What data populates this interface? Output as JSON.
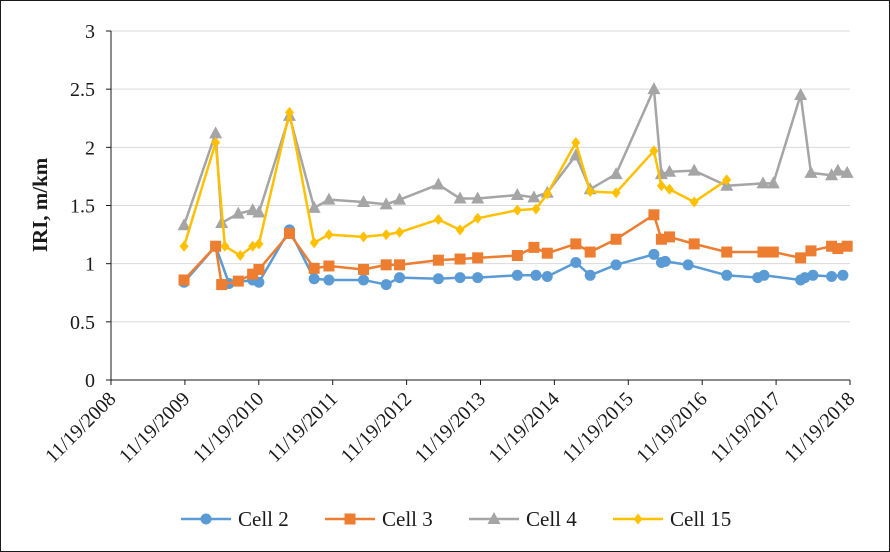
{
  "chart_data": {
    "type": "line",
    "title": "",
    "xlabel": "",
    "ylabel": "IRI, m/km",
    "ylim": [
      0,
      3
    ],
    "yticks": [
      "0",
      "0.5",
      "1",
      "1.5",
      "2",
      "2.5",
      "3"
    ],
    "xlim": [
      "2008-11-19",
      "2018-11-19"
    ],
    "xticks": [
      "11/19/2008",
      "11/19/2009",
      "11/19/2010",
      "11/19/2011",
      "11/19/2012",
      "11/19/2013",
      "11/19/2014",
      "11/19/2015",
      "11/19/2016",
      "11/19/2017",
      "11/19/2018"
    ],
    "grid": "horizontal",
    "legend_position": "bottom",
    "series": [
      {
        "name": "Cell 2",
        "color": "#5b9bd5",
        "marker": "circle",
        "x": [
          "2009-11-15",
          "2010-04-20",
          "2010-06-25",
          "2010-10-20",
          "2010-11-20",
          "2011-04-20",
          "2011-08-20",
          "2011-11-01",
          "2012-04-20",
          "2012-08-10",
          "2012-10-15",
          "2013-04-25",
          "2013-08-10",
          "2013-11-05",
          "2014-05-20",
          "2014-08-20",
          "2014-10-15",
          "2015-03-05",
          "2015-05-15",
          "2015-09-20",
          "2016-03-25",
          "2016-05-01",
          "2016-05-20",
          "2016-09-10",
          "2017-03-20",
          "2017-08-20",
          "2017-09-20",
          "2018-03-20",
          "2018-04-10",
          "2018-05-20",
          "2018-08-20",
          "2018-10-15"
        ],
        "values": [
          0.84,
          1.15,
          0.83,
          0.86,
          0.84,
          1.29,
          0.87,
          0.86,
          0.86,
          0.82,
          0.88,
          0.87,
          0.88,
          0.88,
          0.9,
          0.9,
          0.89,
          1.01,
          0.9,
          0.99,
          1.08,
          1.01,
          1.02,
          0.99,
          0.9,
          0.88,
          0.9,
          0.86,
          0.88,
          0.9,
          0.89,
          0.9
        ]
      },
      {
        "name": "Cell 3",
        "color": "#ed7d31",
        "marker": "square",
        "x": [
          "2009-11-15",
          "2010-04-20",
          "2010-05-20",
          "2010-08-10",
          "2010-10-20",
          "2010-11-20",
          "2011-04-20",
          "2011-08-20",
          "2011-11-01",
          "2012-04-20",
          "2012-08-10",
          "2012-10-15",
          "2013-04-25",
          "2013-08-10",
          "2013-11-05",
          "2014-05-20",
          "2014-08-10",
          "2014-10-15",
          "2015-03-05",
          "2015-05-15",
          "2015-09-20",
          "2016-03-25",
          "2016-05-01",
          "2016-06-10",
          "2016-10-10",
          "2017-03-20",
          "2017-09-15",
          "2017-11-05",
          "2018-03-20",
          "2018-05-10",
          "2018-08-20",
          "2018-09-20",
          "2018-11-05"
        ],
        "values": [
          0.86,
          1.15,
          0.82,
          0.85,
          0.91,
          0.95,
          1.26,
          0.96,
          0.98,
          0.95,
          0.99,
          0.99,
          1.03,
          1.04,
          1.05,
          1.07,
          1.14,
          1.09,
          1.17,
          1.1,
          1.21,
          1.42,
          1.21,
          1.23,
          1.17,
          1.1,
          1.1,
          1.1,
          1.05,
          1.11,
          1.15,
          1.13,
          1.15
        ]
      },
      {
        "name": "Cell 4",
        "color": "#a5a5a5",
        "marker": "triangle",
        "x": [
          "2009-11-15",
          "2010-04-20",
          "2010-05-20",
          "2010-08-10",
          "2010-10-20",
          "2010-11-20",
          "2011-04-20",
          "2011-08-20",
          "2011-11-01",
          "2012-04-20",
          "2012-08-10",
          "2012-10-15",
          "2013-04-25",
          "2013-08-10",
          "2013-11-05",
          "2014-05-20",
          "2014-08-10",
          "2014-10-15",
          "2015-03-05",
          "2015-05-15",
          "2015-09-20",
          "2016-03-25",
          "2016-05-01",
          "2016-06-10",
          "2016-10-10",
          "2017-03-20",
          "2017-09-15",
          "2017-11-05",
          "2018-03-20",
          "2018-05-10",
          "2018-08-20",
          "2018-09-20",
          "2018-11-05"
        ],
        "values": [
          1.33,
          2.12,
          1.35,
          1.43,
          1.46,
          1.44,
          2.27,
          1.48,
          1.55,
          1.53,
          1.51,
          1.55,
          1.68,
          1.56,
          1.56,
          1.59,
          1.57,
          1.61,
          1.93,
          1.64,
          1.77,
          2.5,
          1.77,
          1.79,
          1.8,
          1.67,
          1.69,
          1.69,
          2.45,
          1.78,
          1.76,
          1.8,
          1.78
        ]
      },
      {
        "name": "Cell 15",
        "color": "#ffc000",
        "marker": "diamond",
        "x": [
          "2009-11-15",
          "2010-04-20",
          "2010-06-05",
          "2010-08-20",
          "2010-10-20",
          "2010-11-20",
          "2011-04-20",
          "2011-08-20",
          "2011-11-01",
          "2012-04-20",
          "2012-08-10",
          "2012-10-15",
          "2013-04-25",
          "2013-08-10",
          "2013-11-05",
          "2014-05-20",
          "2014-08-20",
          "2014-10-15",
          "2015-03-05",
          "2015-05-15",
          "2015-09-20",
          "2016-03-25",
          "2016-05-01",
          "2016-06-10",
          "2016-10-10",
          "2017-03-20"
        ],
        "values": [
          1.15,
          2.04,
          1.15,
          1.07,
          1.15,
          1.17,
          2.3,
          1.18,
          1.25,
          1.23,
          1.25,
          1.27,
          1.38,
          1.29,
          1.39,
          1.46,
          1.47,
          1.6,
          2.04,
          1.62,
          1.61,
          1.97,
          1.67,
          1.64,
          1.53,
          1.72
        ]
      }
    ]
  }
}
